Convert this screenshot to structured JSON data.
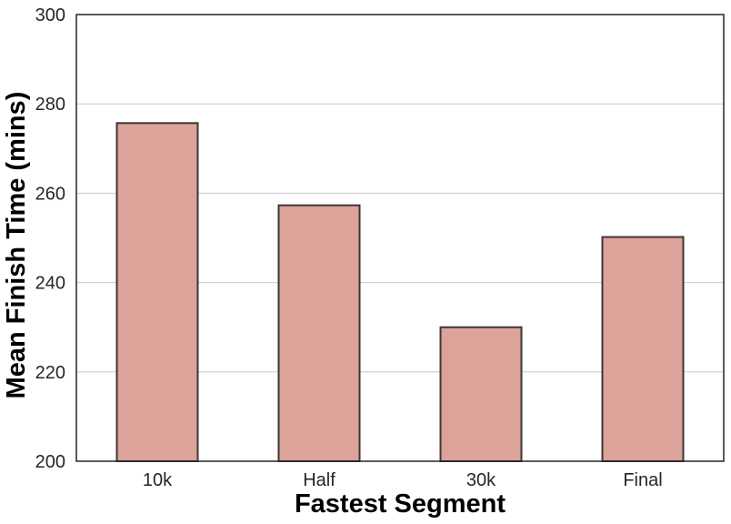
{
  "chart_data": {
    "type": "bar",
    "title": "",
    "xlabel": "Fastest Segment",
    "ylabel": "Mean Finish Time (mins)",
    "categories": [
      "10k",
      "Half",
      "30k",
      "Final"
    ],
    "values": [
      275.7,
      257.3,
      230.0,
      250.2
    ],
    "ylim": [
      200,
      300
    ],
    "yticks": [
      200,
      220,
      240,
      260,
      280,
      300
    ],
    "grid": "horizontal",
    "legend": "none",
    "colors": {
      "bar_fill": "#dba39a",
      "bar_edge": "#3d3535",
      "grid": "#c8c8c8",
      "axis": "#262626",
      "background": "#ffffff"
    }
  }
}
